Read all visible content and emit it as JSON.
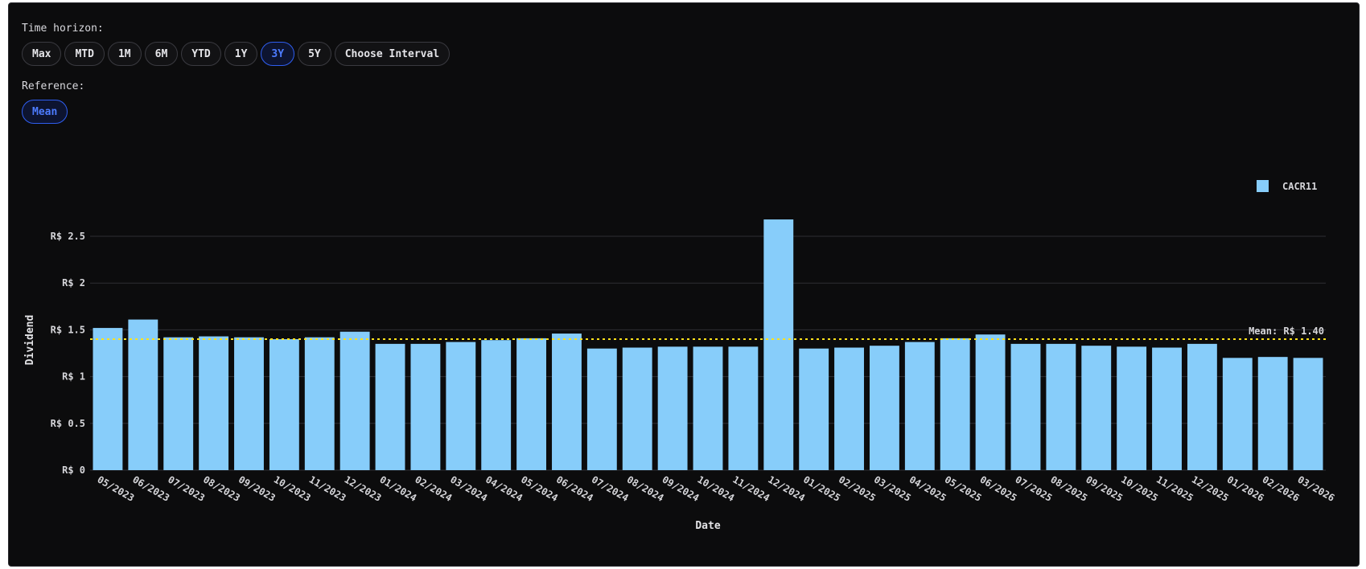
{
  "controls": {
    "time_horizon_label": "Time horizon:",
    "time_buttons": [
      {
        "label": "Max",
        "active": false
      },
      {
        "label": "MTD",
        "active": false
      },
      {
        "label": "1M",
        "active": false
      },
      {
        "label": "6M",
        "active": false
      },
      {
        "label": "YTD",
        "active": false
      },
      {
        "label": "1Y",
        "active": false
      },
      {
        "label": "3Y",
        "active": true
      },
      {
        "label": "5Y",
        "active": false
      },
      {
        "label": "Choose Interval",
        "active": false
      }
    ],
    "reference_label": "Reference:",
    "reference_buttons": [
      {
        "label": "Mean",
        "active": true
      }
    ]
  },
  "chart_data": {
    "type": "bar",
    "title": "",
    "xlabel": "Date",
    "ylabel": "Dividend",
    "ylim": [
      0,
      2.5
    ],
    "yticks": [
      0,
      0.5,
      1,
      1.5,
      2,
      2.5
    ],
    "ytick_labels": [
      "R$ 0",
      "R$ 0.5",
      "R$ 1",
      "R$ 1.5",
      "R$ 2",
      "R$ 2.5"
    ],
    "grid": true,
    "legend_position": "top-right",
    "categories": [
      "05/2023",
      "06/2023",
      "07/2023",
      "08/2023",
      "09/2023",
      "10/2023",
      "11/2023",
      "12/2023",
      "01/2024",
      "02/2024",
      "03/2024",
      "04/2024",
      "05/2024",
      "06/2024",
      "07/2024",
      "08/2024",
      "09/2024",
      "10/2024",
      "11/2024",
      "12/2024",
      "01/2025",
      "02/2025",
      "03/2025",
      "04/2025",
      "05/2025",
      "06/2025",
      "07/2025",
      "08/2025",
      "09/2025",
      "10/2025",
      "11/2025",
      "12/2025",
      "01/2026",
      "02/2026",
      "03/2026"
    ],
    "series": [
      {
        "name": "CACR11",
        "color": "#87cdfa",
        "values": [
          1.52,
          1.61,
          1.42,
          1.43,
          1.42,
          1.4,
          1.42,
          1.48,
          1.35,
          1.35,
          1.37,
          1.39,
          1.41,
          1.46,
          1.3,
          1.31,
          1.32,
          1.32,
          1.32,
          2.68,
          1.3,
          1.31,
          1.33,
          1.37,
          1.41,
          1.45,
          1.35,
          1.35,
          1.33,
          1.32,
          1.31,
          1.35,
          1.2,
          1.21,
          1.2
        ]
      }
    ],
    "reference_line": {
      "label": "Mean: R$ 1.40",
      "value": 1.4,
      "color": "#ffe21a"
    }
  }
}
